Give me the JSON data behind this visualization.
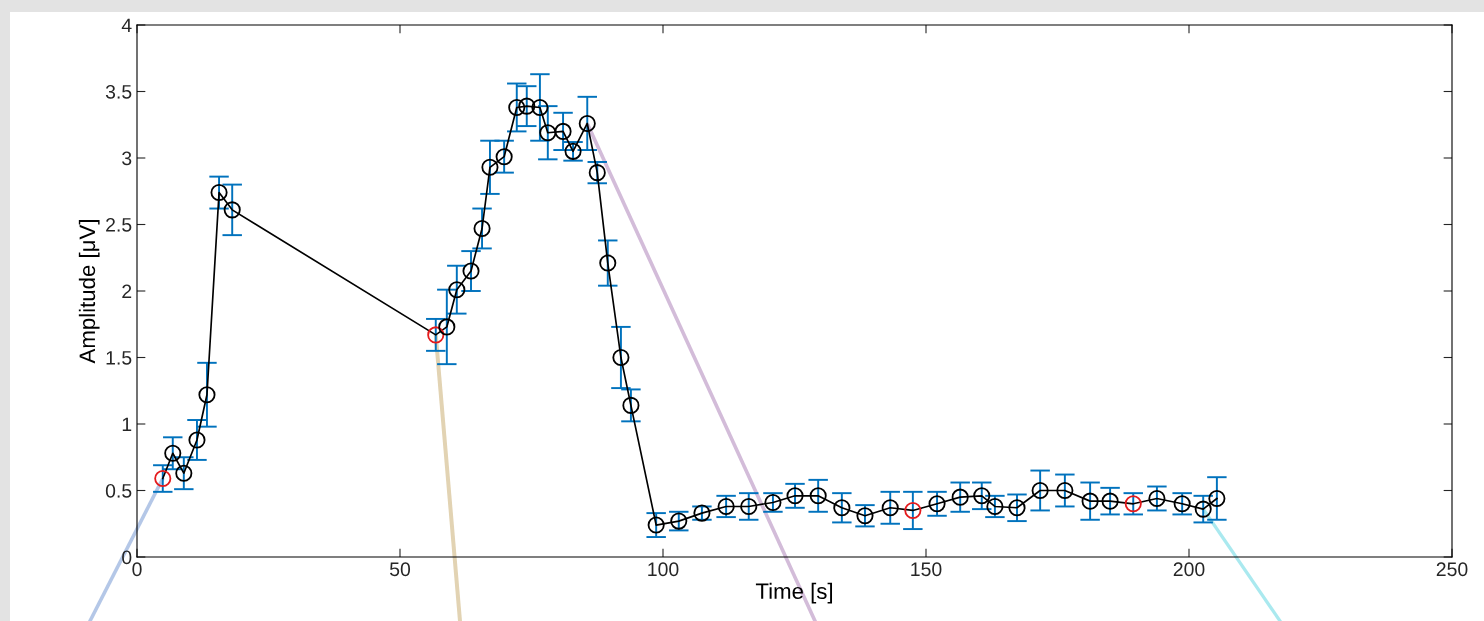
{
  "chart_data": {
    "type": "line",
    "xlabel": "Time [s]",
    "ylabel": "Amplitude [μV]",
    "xlim": [
      0,
      250
    ],
    "xticks": [
      0,
      50,
      100,
      150,
      200,
      250
    ],
    "ylim": [
      0,
      4
    ],
    "yticks": [
      0,
      0.5,
      1,
      1.5,
      2,
      2.5,
      3,
      3.5,
      4
    ],
    "grid": false,
    "marker": "circle",
    "line_style": "solid",
    "series": [
      {
        "color": "#000000",
        "x": [
          4.9,
          6.8,
          8.9,
          11.4,
          13.3,
          15.6,
          18.1,
          56.8,
          58.9,
          60.8,
          63.5,
          65.6,
          67.1,
          69.8,
          72.2,
          74.1,
          76.6,
          78.1,
          81,
          82.9,
          85.6,
          87.5,
          89.5,
          92,
          93.9,
          98.7,
          103,
          107.4,
          112,
          116.3,
          120.9,
          125.1,
          129.5,
          134,
          138.4,
          143.2,
          147.5,
          152.1,
          156.5,
          160.6,
          163.1,
          167.3,
          171.7,
          176.4,
          181.2,
          185,
          189.4,
          193.9,
          198.7,
          202.7,
          205.3
        ],
        "values": [
          0.59,
          0.78,
          0.63,
          0.88,
          1.22,
          2.74,
          2.61,
          1.67,
          1.73,
          2.01,
          2.15,
          2.47,
          2.93,
          3.01,
          3.38,
          3.39,
          3.38,
          3.19,
          3.2,
          3.05,
          3.26,
          2.89,
          2.21,
          1.5,
          1.14,
          0.24,
          0.27,
          0.33,
          0.38,
          0.38,
          0.41,
          0.46,
          0.46,
          0.37,
          0.31,
          0.37,
          0.35,
          0.4,
          0.45,
          0.46,
          0.38,
          0.37,
          0.5,
          0.5,
          0.42,
          0.42,
          0.4,
          0.44,
          0.4,
          0.36,
          0.44
        ],
        "errors": [
          0.1,
          0.12,
          0.12,
          0.15,
          0.24,
          0.12,
          0.19,
          0.12,
          0.28,
          0.18,
          0.15,
          0.15,
          0.2,
          0.12,
          0.18,
          0.15,
          0.25,
          0.2,
          0.14,
          0.07,
          0.2,
          0.08,
          0.17,
          0.23,
          0.12,
          0.09,
          0.07,
          0.05,
          0.08,
          0.1,
          0.07,
          0.09,
          0.12,
          0.11,
          0.08,
          0.12,
          0.14,
          0.09,
          0.11,
          0.1,
          0.08,
          0.1,
          0.15,
          0.12,
          0.14,
          0.1,
          0.08,
          0.09,
          0.08,
          0.1,
          0.16
        ],
        "colors": [
          "#e41a1c",
          "#000000",
          "#000000",
          "#000000",
          "#000000",
          "#000000",
          "#000000",
          "#e41a1c",
          "#000000",
          "#000000",
          "#000000",
          "#000000",
          "#000000",
          "#000000",
          "#000000",
          "#000000",
          "#000000",
          "#000000",
          "#000000",
          "#000000",
          "#000000",
          "#000000",
          "#000000",
          "#000000",
          "#000000",
          "#000000",
          "#000000",
          "#000000",
          "#000000",
          "#000000",
          "#000000",
          "#000000",
          "#000000",
          "#000000",
          "#000000",
          "#000000",
          "#e41a1c",
          "#000000",
          "#000000",
          "#000000",
          "#000000",
          "#000000",
          "#000000",
          "#000000",
          "#000000",
          "#000000",
          "#e41a1c",
          "#000000",
          "#000000",
          "#000000",
          "#000000"
        ]
      }
    ]
  }
}
